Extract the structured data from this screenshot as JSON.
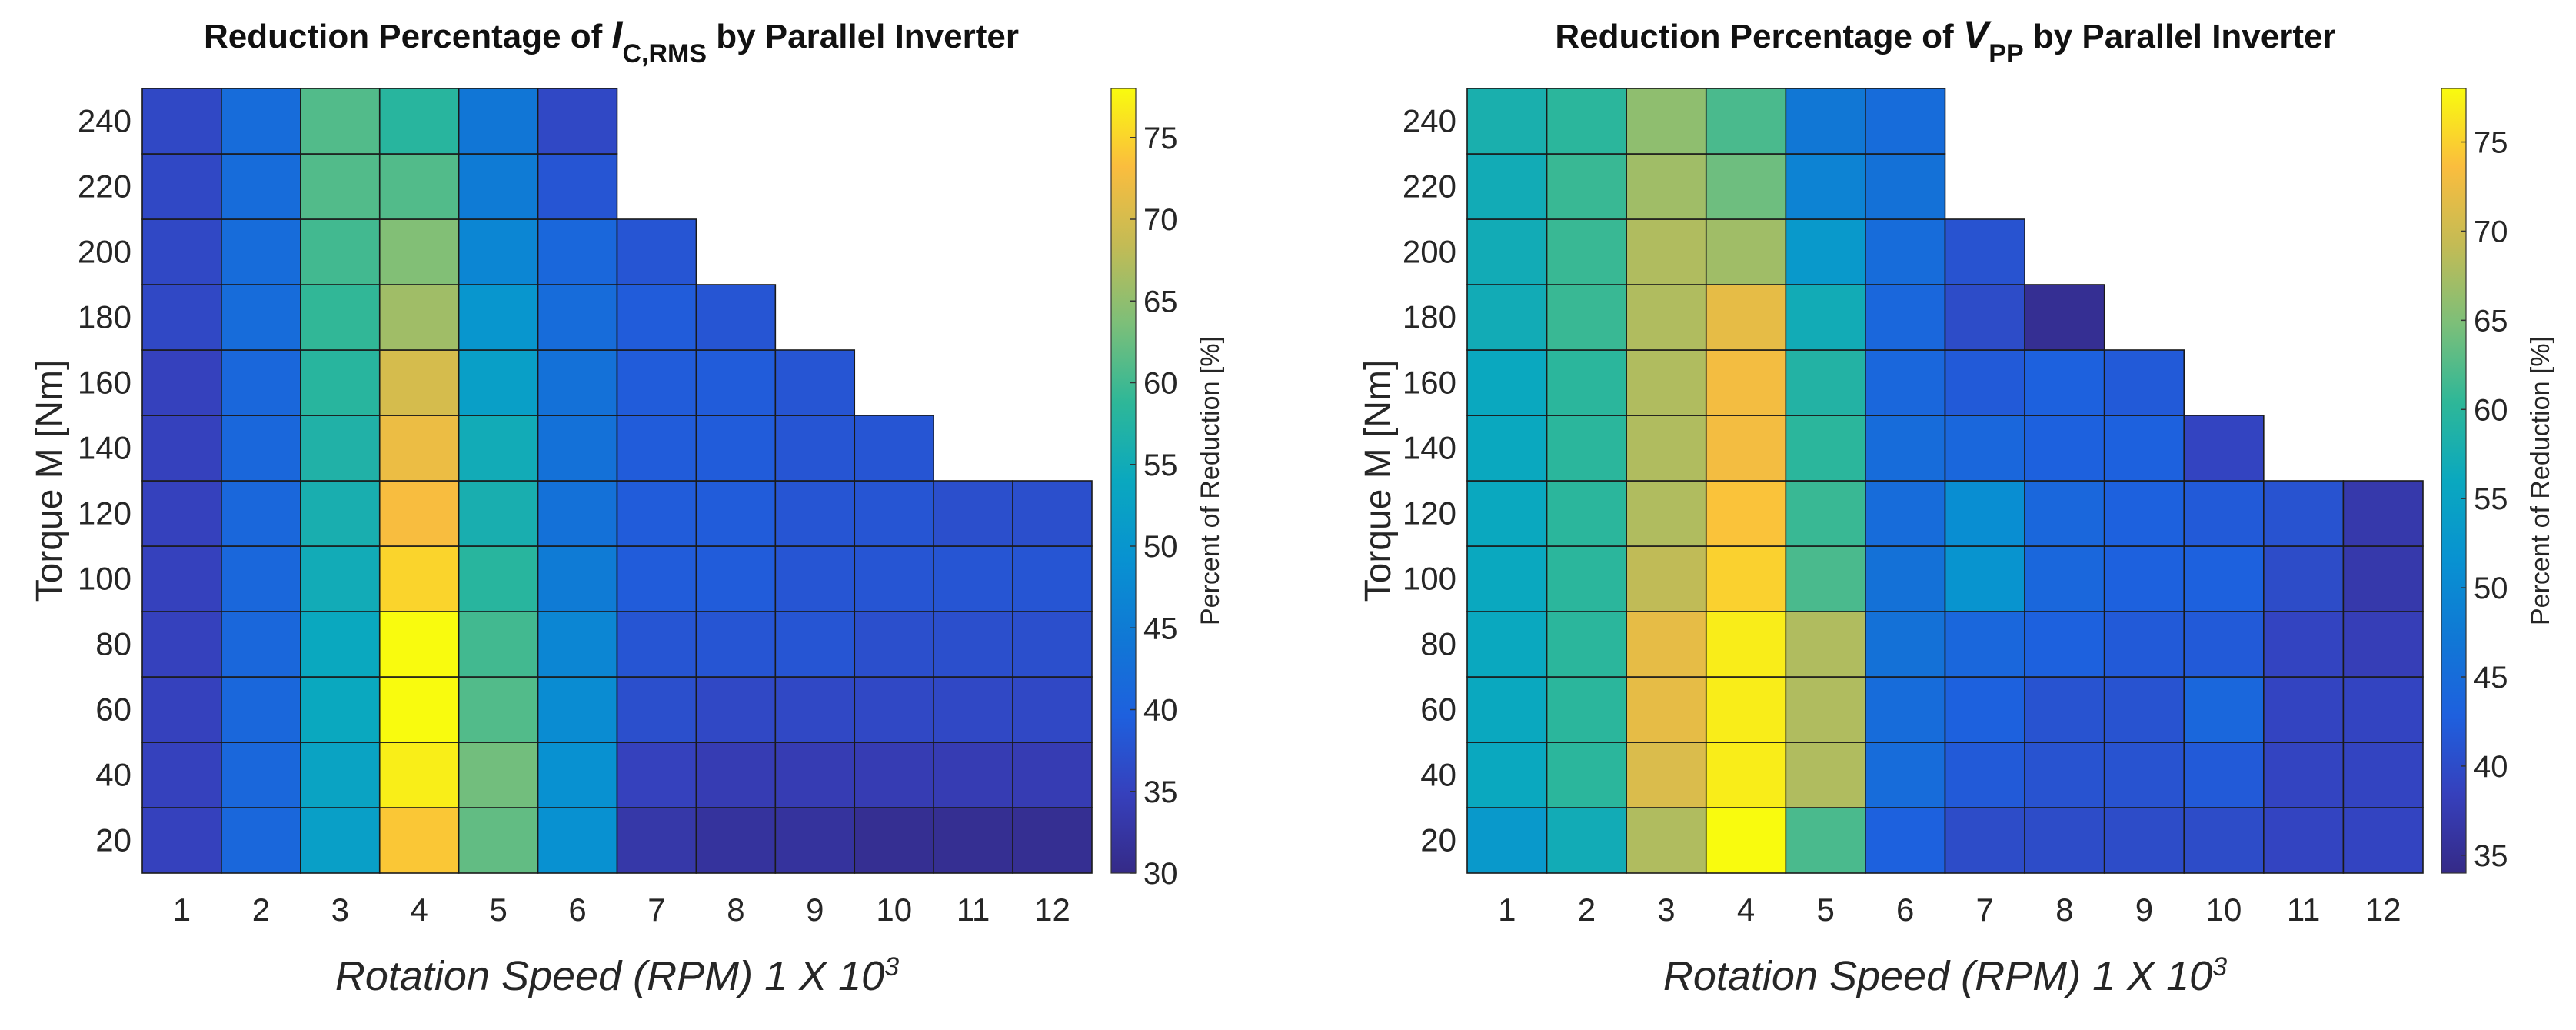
{
  "chart_data": [
    {
      "type": "heatmap",
      "title_prefix": "Reduction Percentage of ",
      "title_var": "I",
      "title_sub": "C,RMS",
      "title_suffix": " by Parallel Inverter",
      "xlabel": "Rotation Speed (RPM) 1 X 10",
      "xlabel_sup": "3",
      "ylabel": "Torque M [Nm]",
      "colorbar_label": "Percent of Reduction [%]",
      "colorbar_range": [
        30,
        78
      ],
      "colorbar_ticks": [
        30,
        35,
        40,
        45,
        50,
        55,
        60,
        65,
        70,
        75
      ],
      "x_categories": [
        1,
        2,
        3,
        4,
        5,
        6,
        7,
        8,
        9,
        10,
        11,
        12
      ],
      "y_range": [
        10,
        250
      ],
      "y_ticks": [
        20,
        40,
        60,
        80,
        100,
        120,
        140,
        160,
        180,
        200,
        220,
        240
      ],
      "y_rows": [
        20,
        40,
        60,
        80,
        100,
        120,
        140,
        160,
        180,
        200,
        220,
        240
      ],
      "values": [
        [
          35,
          41,
          52,
          74,
          62,
          49,
          33,
          32,
          32,
          31,
          31,
          31
        ],
        [
          35,
          41,
          53,
          77,
          63,
          49,
          35,
          34,
          34,
          34,
          34,
          34
        ],
        [
          35,
          41,
          54,
          78,
          61,
          48,
          37,
          36,
          36,
          36,
          36,
          36
        ],
        [
          35,
          41,
          54,
          78,
          60,
          47,
          38,
          38,
          38,
          37,
          37,
          37
        ],
        [
          35,
          41,
          55,
          75,
          58,
          45,
          39,
          39,
          38,
          38,
          38,
          38
        ],
        [
          35,
          41,
          56,
          73,
          56,
          43,
          39,
          39,
          38,
          38,
          37,
          37
        ],
        [
          35,
          41,
          57,
          72,
          55,
          43,
          39,
          39,
          38,
          38,
          null,
          null
        ],
        [
          35,
          41,
          58,
          70,
          52,
          43,
          39,
          39,
          38,
          null,
          null,
          null
        ],
        [
          36,
          42,
          59,
          66,
          50,
          42,
          39,
          38,
          null,
          null,
          null,
          null
        ],
        [
          36,
          42,
          60,
          64,
          47,
          41,
          38,
          null,
          null,
          null,
          null,
          null
        ],
        [
          36,
          42,
          61,
          61,
          45,
          38,
          null,
          null,
          null,
          null,
          null,
          null
        ],
        [
          36,
          42,
          61,
          58,
          44,
          36,
          null,
          null,
          null,
          null,
          null,
          null
        ]
      ]
    },
    {
      "type": "heatmap",
      "title_prefix": "Reduction Percentage of ",
      "title_var": "V",
      "title_sub": "PP",
      "title_suffix": " by Parallel Inverter",
      "xlabel": "Rotation Speed (RPM) 1 X 10",
      "xlabel_sup": "3",
      "ylabel": "Torque M [Nm]",
      "colorbar_label": "Percent of Reduction [%]",
      "colorbar_range": [
        34,
        78
      ],
      "colorbar_ticks": [
        35,
        40,
        45,
        50,
        55,
        60,
        65,
        70,
        75
      ],
      "x_categories": [
        1,
        2,
        3,
        4,
        5,
        6,
        7,
        8,
        9,
        10,
        11,
        12
      ],
      "y_range": [
        10,
        250
      ],
      "y_ticks": [
        20,
        40,
        60,
        80,
        100,
        120,
        140,
        160,
        180,
        200,
        220,
        240
      ],
      "y_rows": [
        20,
        40,
        60,
        80,
        100,
        120,
        140,
        160,
        180,
        200,
        220,
        240
      ],
      "values": [
        [
          53,
          57,
          68,
          78,
          62,
          43,
          40,
          40,
          40,
          40,
          39,
          39
        ],
        [
          56,
          60,
          71,
          77,
          68,
          45,
          42,
          41,
          41,
          42,
          39,
          39
        ],
        [
          56,
          60,
          72,
          77,
          68,
          45,
          43,
          41,
          41,
          44,
          39,
          39
        ],
        [
          56,
          60,
          72,
          77,
          68,
          46,
          44,
          43,
          42,
          42,
          39,
          38
        ],
        [
          56,
          60,
          69,
          75,
          62,
          46,
          52,
          44,
          43,
          43,
          40,
          37
        ],
        [
          56,
          60,
          68,
          74,
          61,
          45,
          51,
          44,
          43,
          42,
          41,
          37
        ],
        [
          56,
          60,
          68,
          73,
          60,
          45,
          44,
          43,
          43,
          39,
          null,
          null
        ],
        [
          56,
          60,
          68,
          73,
          59,
          44,
          42,
          43,
          42,
          null,
          null,
          null
        ],
        [
          57,
          61,
          68,
          72,
          57,
          44,
          40,
          35,
          null,
          null,
          null,
          null
        ],
        [
          57,
          61,
          68,
          67,
          53,
          45,
          41,
          null,
          null,
          null,
          null,
          null
        ],
        [
          57,
          61,
          67,
          64,
          49,
          46,
          null,
          null,
          null,
          null,
          null,
          null
        ],
        [
          58,
          60,
          66,
          62,
          47,
          45,
          null,
          null,
          null,
          null,
          null,
          null
        ]
      ]
    }
  ]
}
